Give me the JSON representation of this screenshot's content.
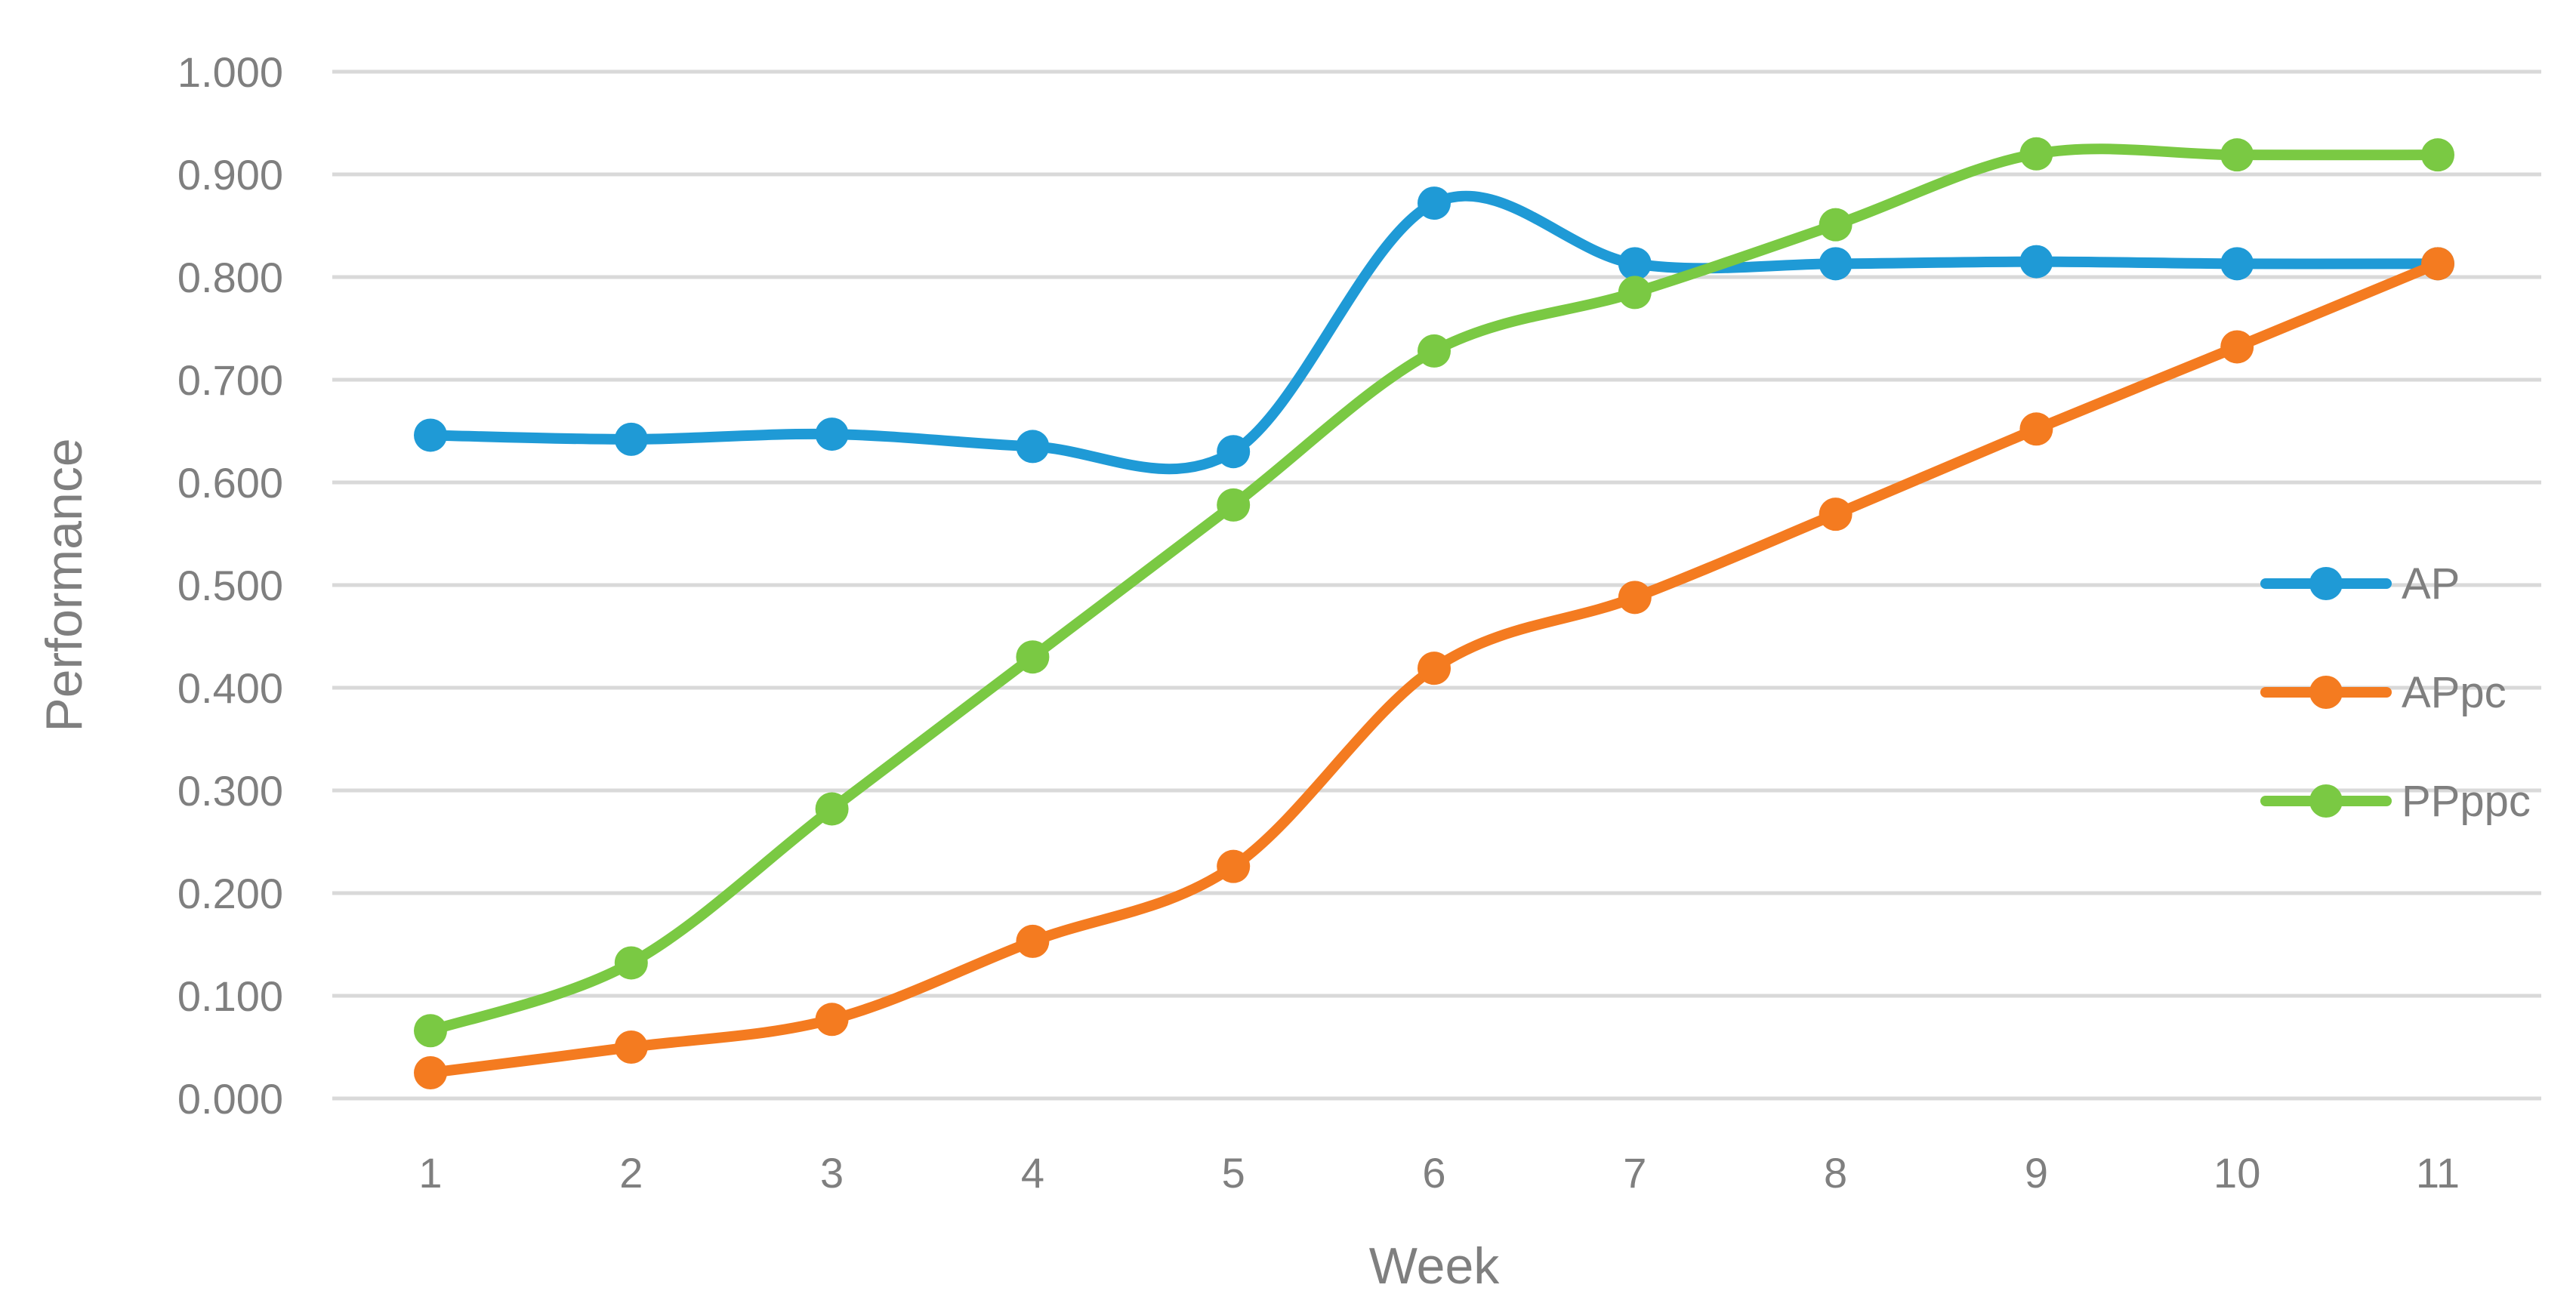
{
  "chart_data": {
    "type": "line",
    "title": "",
    "xlabel": "Week",
    "ylabel": "Performance",
    "x": [
      1,
      2,
      3,
      4,
      5,
      6,
      7,
      8,
      9,
      10,
      11
    ],
    "x_tick_labels": [
      "1",
      "2",
      "3",
      "4",
      "5",
      "6",
      "7",
      "8",
      "9",
      "10",
      "11"
    ],
    "ylim": [
      0,
      1
    ],
    "y_ticks": [
      0,
      0.1,
      0.2,
      0.3,
      0.4,
      0.5,
      0.6,
      0.7,
      0.8,
      0.9,
      1.0
    ],
    "y_tick_labels": [
      "0.000",
      "0.100",
      "0.200",
      "0.300",
      "0.400",
      "0.500",
      "0.600",
      "0.700",
      "0.800",
      "0.900",
      "1.000"
    ],
    "grid": true,
    "smooth": true,
    "legend_position": "right",
    "series": [
      {
        "name": "AP",
        "color": "#1f9ad6",
        "values": [
          0.646,
          0.642,
          0.647,
          0.635,
          0.63,
          0.872,
          0.813,
          0.813,
          0.815,
          0.813,
          0.813
        ]
      },
      {
        "name": "APpc",
        "color": "#f47b20",
        "values": [
          0.025,
          0.05,
          0.077,
          0.153,
          0.226,
          0.419,
          0.488,
          0.569,
          0.652,
          0.732,
          0.813
        ]
      },
      {
        "name": "PPppc",
        "color": "#7ac943",
        "values": [
          0.066,
          0.132,
          0.282,
          0.43,
          0.578,
          0.728,
          0.785,
          0.851,
          0.92,
          0.919,
          0.919
        ]
      }
    ]
  }
}
